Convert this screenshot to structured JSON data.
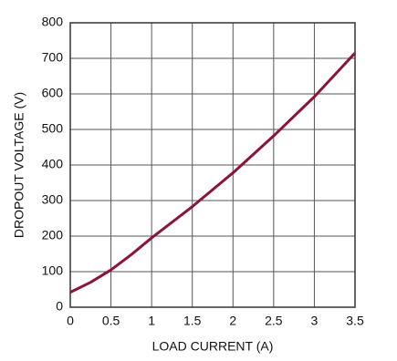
{
  "chart_data": {
    "type": "line",
    "x_label": "LOAD CURRENT (A)",
    "y_label": "DROPOUT VOLTAGE (V)",
    "x": [
      0,
      0.25,
      0.5,
      0.75,
      1,
      1.5,
      2,
      2.5,
      3,
      3.5
    ],
    "series": [
      {
        "color": "#8a1538",
        "values": [
          42,
          70,
          105,
          148,
          195,
          283,
          378,
          482,
          592,
          715
        ]
      }
    ],
    "xlim": [
      0,
      3.5
    ],
    "xticks": [
      0,
      0.5,
      1,
      1.5,
      2,
      2.5,
      3,
      3.5
    ],
    "ylim": [
      0,
      800
    ],
    "yticks": [
      0,
      100,
      200,
      300,
      400,
      500,
      600,
      700,
      800
    ],
    "grid": true
  }
}
